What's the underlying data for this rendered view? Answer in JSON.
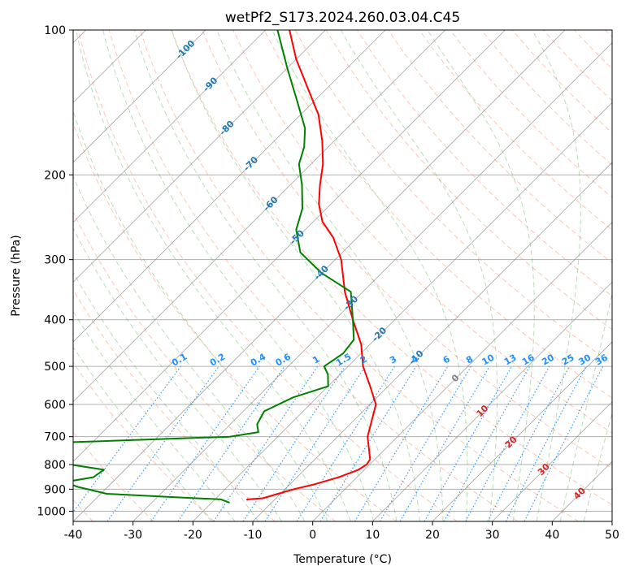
{
  "chart_data": {
    "type": "line",
    "title": "wetPf2_S173.2024.260.03.04.C45",
    "xlabel": "Temperature (°C)",
    "ylabel": "Pressure (hPa)",
    "xlim": [
      -40,
      50
    ],
    "ylim": [
      1050,
      100
    ],
    "y_scale": "log",
    "x_ticks": [
      "-40",
      "-30",
      "-20",
      "-10",
      "0",
      "10",
      "20",
      "30",
      "40",
      "50"
    ],
    "y_ticks": [
      "100",
      "200",
      "300",
      "400",
      "500",
      "600",
      "700",
      "800",
      "900",
      "1000"
    ],
    "grid": true,
    "skew_degrees": 45,
    "colors": {
      "temperature": "#ff0000",
      "dewpoint": "#008000",
      "isotherm": "#808080",
      "dry_adiabat": "#ff7f50",
      "moist_adiabat": "#2ca02c",
      "mixing_ratio": "#1e90ff",
      "isotherm_label": "#1f77b4",
      "warm_isotherm_label": "#d62728"
    },
    "isotherm_labels": [
      {
        "text": "-100",
        "t": -100,
        "p": 110
      },
      {
        "text": "-90",
        "t": -90,
        "p": 130
      },
      {
        "text": "-80",
        "t": -80,
        "p": 160
      },
      {
        "text": "-70",
        "t": -70,
        "p": 190
      },
      {
        "text": "-60",
        "t": -60,
        "p": 230
      },
      {
        "text": "-50",
        "t": -50,
        "p": 270
      },
      {
        "text": "-40",
        "t": -40,
        "p": 320
      },
      {
        "text": "-30",
        "t": -30,
        "p": 370
      },
      {
        "text": "-20",
        "t": -20,
        "p": 430
      },
      {
        "text": "-10",
        "t": -10,
        "p": 480
      },
      {
        "text": "0",
        "t": 0,
        "p": 530
      },
      {
        "text": "10",
        "t": 10,
        "p": 620
      },
      {
        "text": "20",
        "t": 20,
        "p": 720
      },
      {
        "text": "30",
        "t": 30,
        "p": 820
      },
      {
        "text": "40",
        "t": 40,
        "p": 920
      }
    ],
    "mixing_ratio_labels": [
      "0.1",
      "0.2",
      "0.4",
      "0.6",
      "1",
      "1.5",
      "2",
      "3",
      "4",
      "6",
      "8",
      "10",
      "13",
      "16",
      "20",
      "25",
      "30",
      "36"
    ],
    "series": [
      {
        "name": "Temperature",
        "points": [
          {
            "p": 950,
            "t": -14.5
          },
          {
            "p": 945,
            "t": -14.6
          },
          {
            "p": 940,
            "t": -12.2
          },
          {
            "p": 920,
            "t": -10.4
          },
          {
            "p": 900,
            "t": -8.5
          },
          {
            "p": 880,
            "t": -6.0
          },
          {
            "p": 850,
            "t": -3.0
          },
          {
            "p": 820,
            "t": -1.0
          },
          {
            "p": 800,
            "t": -0.5
          },
          {
            "p": 780,
            "t": -0.8
          },
          {
            "p": 700,
            "t": -5.0
          },
          {
            "p": 600,
            "t": -9.0
          },
          {
            "p": 550,
            "t": -13.0
          },
          {
            "p": 500,
            "t": -17.5
          },
          {
            "p": 450,
            "t": -21.5
          },
          {
            "p": 400,
            "t": -27.0
          },
          {
            "p": 350,
            "t": -33.0
          },
          {
            "p": 300,
            "t": -39.0
          },
          {
            "p": 270,
            "t": -44.0
          },
          {
            "p": 250,
            "t": -48.5
          },
          {
            "p": 230,
            "t": -52.0
          },
          {
            "p": 210,
            "t": -55.0
          },
          {
            "p": 190,
            "t": -58.0
          },
          {
            "p": 170,
            "t": -62.0
          },
          {
            "p": 150,
            "t": -67.0
          },
          {
            "p": 130,
            "t": -74.0
          },
          {
            "p": 115,
            "t": -80.0
          },
          {
            "p": 100,
            "t": -86.0
          }
        ]
      },
      {
        "name": "Dewpoint",
        "points": [
          {
            "p": 960,
            "t": -17.0
          },
          {
            "p": 945,
            "t": -19.0
          },
          {
            "p": 935,
            "t": -27.0
          },
          {
            "p": 920,
            "t": -39.0
          },
          {
            "p": 890,
            "t": -45.0
          },
          {
            "p": 870,
            "t": -48.0
          },
          {
            "p": 850,
            "t": -44.0
          },
          {
            "p": 820,
            "t": -43.5
          },
          {
            "p": 800,
            "t": -50.0
          },
          {
            "p": 750,
            "t": -70.0
          },
          {
            "p": 735,
            "t": -76.0
          },
          {
            "p": 720,
            "t": -55.0
          },
          {
            "p": 700,
            "t": -28.0
          },
          {
            "p": 685,
            "t": -24.0
          },
          {
            "p": 660,
            "t": -25.5
          },
          {
            "p": 620,
            "t": -26.5
          },
          {
            "p": 580,
            "t": -24.0
          },
          {
            "p": 550,
            "t": -20.0
          },
          {
            "p": 520,
            "t": -22.0
          },
          {
            "p": 500,
            "t": -24.0
          },
          {
            "p": 470,
            "t": -23.0
          },
          {
            "p": 440,
            "t": -23.5
          },
          {
            "p": 400,
            "t": -27.0
          },
          {
            "p": 350,
            "t": -32.0
          },
          {
            "p": 320,
            "t": -40.0
          },
          {
            "p": 290,
            "t": -47.0
          },
          {
            "p": 260,
            "t": -51.5
          },
          {
            "p": 235,
            "t": -54.0
          },
          {
            "p": 210,
            "t": -58.0
          },
          {
            "p": 190,
            "t": -62.0
          },
          {
            "p": 175,
            "t": -64.0
          },
          {
            "p": 160,
            "t": -67.0
          },
          {
            "p": 140,
            "t": -73.0
          },
          {
            "p": 120,
            "t": -80.0
          },
          {
            "p": 100,
            "t": -88.0
          }
        ]
      }
    ]
  }
}
